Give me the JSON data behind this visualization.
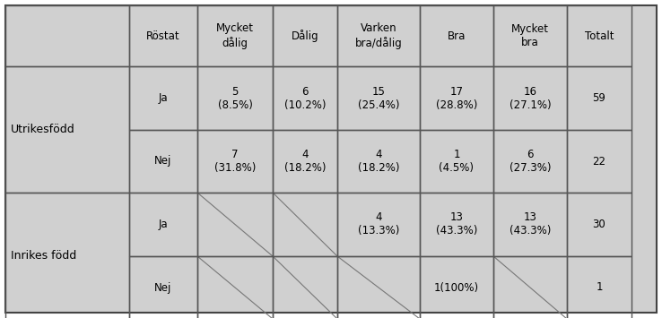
{
  "background_color": "#d0d0d0",
  "cell_bg": "#d0d0d0",
  "text_color": "#000000",
  "col_headers": [
    "Röstat",
    "Mycket\ndålig",
    "Dålig",
    "Varken\nbra/dålig",
    "Bra",
    "Mycket\nbra",
    "Totalt"
  ],
  "row_groups": [
    {
      "group_label": "Utrikesfödd",
      "rows": [
        {
          "sub_label": "Ja",
          "cells": [
            "5\n(8.5%)",
            "6\n(10.2%)",
            "15\n(25.4%)",
            "17\n(28.8%)",
            "16\n(27.1%)",
            "59"
          ],
          "hatched": [
            false,
            false,
            false,
            false,
            false,
            false
          ]
        },
        {
          "sub_label": "Nej",
          "cells": [
            "7\n(31.8%)",
            "4\n(18.2%)",
            "4\n(18.2%)",
            "1\n(4.5%)",
            "6\n(27.3%)",
            "22"
          ],
          "hatched": [
            false,
            false,
            false,
            false,
            false,
            false
          ]
        }
      ]
    },
    {
      "group_label": "Inrikes född",
      "rows": [
        {
          "sub_label": "Ja",
          "cells": [
            "",
            "",
            "4\n(13.3%)",
            "13\n(43.3%)",
            "13\n(43.3%)",
            "30"
          ],
          "hatched": [
            true,
            true,
            false,
            false,
            false,
            false
          ]
        },
        {
          "sub_label": "Nej",
          "cells": [
            "",
            "",
            "",
            "1(100%)",
            "",
            "1"
          ],
          "hatched": [
            true,
            true,
            true,
            false,
            true,
            false
          ]
        }
      ]
    }
  ],
  "figsize": [
    7.38,
    3.55
  ],
  "dpi": 100
}
